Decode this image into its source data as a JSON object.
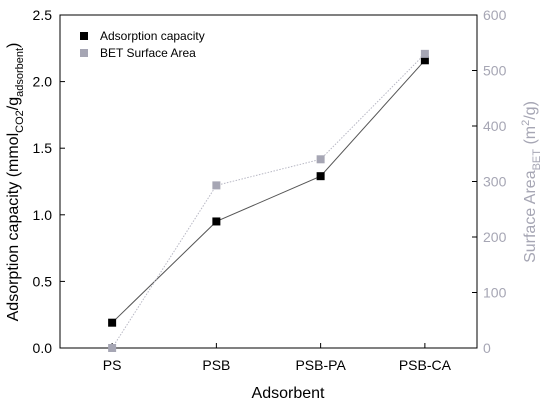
{
  "chart_data": {
    "type": "line",
    "categories": [
      "PS",
      "PSB",
      "PSB-PA",
      "PSB-CA"
    ],
    "xlabel": "Adsorbent",
    "ylabel_left": {
      "main": "Adsorption capacity (mmol",
      "sub1": "CO2",
      "mid": "/g",
      "sub2": "adsorbent",
      "end": ")"
    },
    "ylabel_right": {
      "main": "Surface Area",
      "sub": "BET",
      "mid": " (m",
      "sup": "2",
      "end": "/g)"
    },
    "ylim_left": [
      0,
      2.5
    ],
    "yticks_left": [
      0.0,
      0.5,
      1.0,
      1.5,
      2.0,
      2.5
    ],
    "yticklabels_left": [
      "0.0",
      "0.5",
      "1.0",
      "1.5",
      "2.0",
      "2.5"
    ],
    "ylim_right": [
      0,
      600
    ],
    "yticks_right": [
      0,
      100,
      200,
      300,
      400,
      500,
      600
    ],
    "yticklabels_right": [
      "0",
      "100",
      "200",
      "300",
      "400",
      "500",
      "600"
    ],
    "legend_position": "top-left",
    "grid": false,
    "series": [
      {
        "name": "Adsorption capacity",
        "axis": "left",
        "values": [
          0.19,
          0.95,
          1.29,
          2.16
        ],
        "color": "#000000",
        "line_color": "#555555",
        "marker": "square"
      },
      {
        "name": "BET Surface Area",
        "axis": "right",
        "values": [
          0,
          293,
          340,
          530
        ],
        "color": "#a6a6b4",
        "line_color": "#b8b8c4",
        "marker": "square"
      }
    ]
  }
}
